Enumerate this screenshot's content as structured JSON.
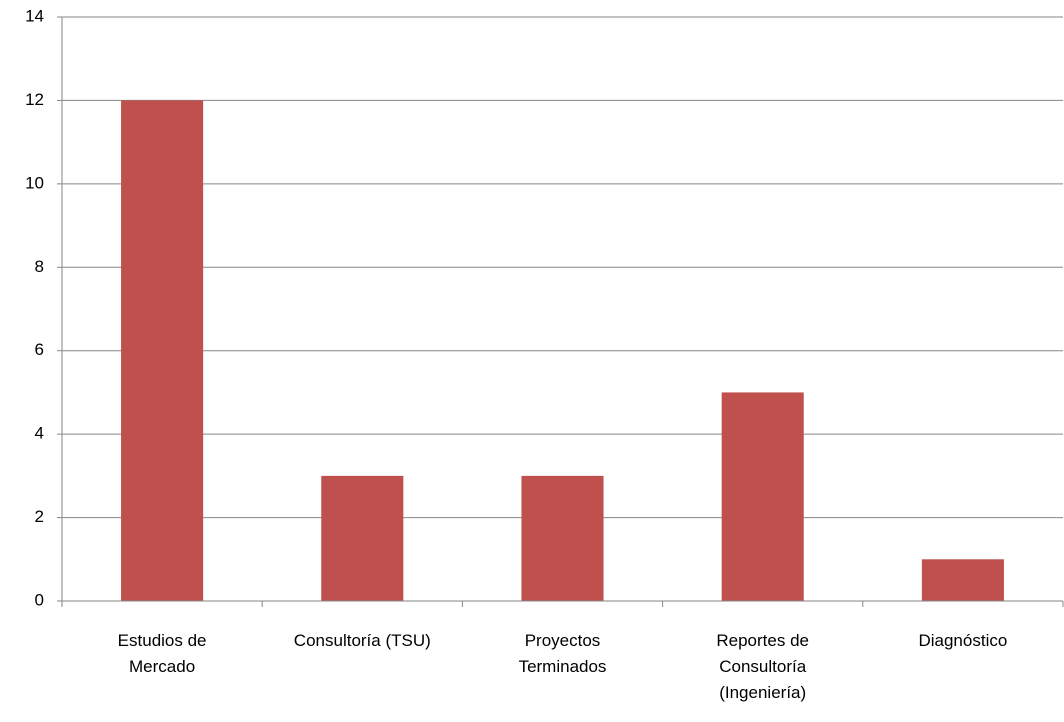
{
  "chart_data": {
    "type": "bar",
    "categories": [
      "Estudios de Mercado",
      "Consultoría (TSU)",
      "Proyectos Terminados",
      "Reportes de Consultoría (Ingeniería)",
      "Diagnóstico"
    ],
    "values": [
      12,
      3,
      3,
      5,
      1
    ],
    "color": "#c0504d",
    "ylim": [
      0,
      14
    ],
    "yticks": [
      0,
      2,
      4,
      6,
      8,
      10,
      12,
      14
    ],
    "grid": true
  }
}
